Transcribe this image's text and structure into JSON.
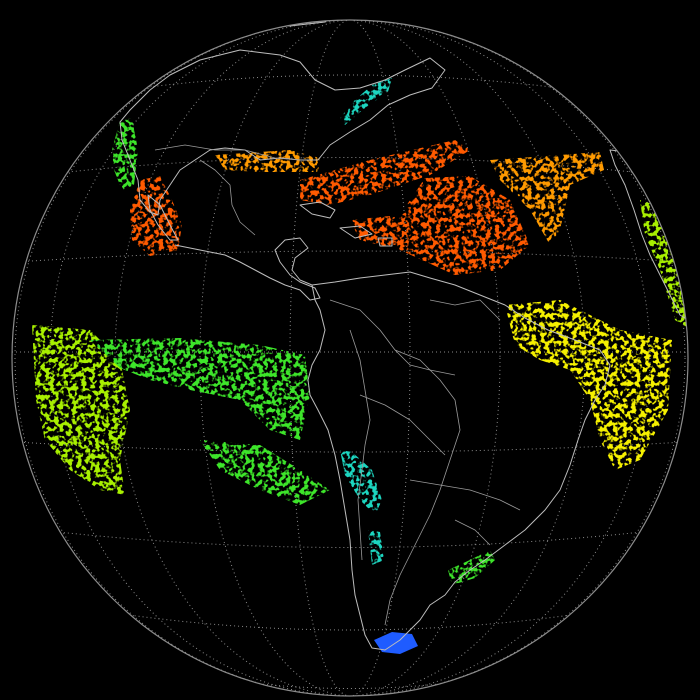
{
  "map": {
    "projection": "orthographic",
    "background_color": "#000000",
    "limb_color": "#8c8c8c",
    "coastline_color": "#bdbdbd",
    "graticule_color": "#8a8a8a",
    "legend": "none",
    "color_palette": {
      "blue": "#1f5cff",
      "cyan": "#1fd6c0",
      "green": "#3ee52a",
      "lime": "#a8f000",
      "yellow": "#f5f000",
      "orange": "#ff9a00",
      "red_orange": "#ff5a00"
    },
    "regions": [
      {
        "id": "baja-california",
        "color": "red_orange"
      },
      {
        "id": "pacific-coast-north",
        "color": "green"
      },
      {
        "id": "gulf-of-mexico-band",
        "color": "orange"
      },
      {
        "id": "caribbean-atlantic-band",
        "color": "red_orange"
      },
      {
        "id": "north-atlantic-band",
        "color": "orange"
      },
      {
        "id": "newfoundland-streak",
        "color": "cyan"
      },
      {
        "id": "eastern-brazil",
        "color": "yellow"
      },
      {
        "id": "western-africa-edge",
        "color": "lime"
      },
      {
        "id": "eastern-pacific-south",
        "color": "green"
      },
      {
        "id": "far-eastern-pacific",
        "color": "lime"
      },
      {
        "id": "chile-coast",
        "color": "cyan"
      },
      {
        "id": "rio-de-la-plata",
        "color": "green"
      },
      {
        "id": "tierra-del-fuego",
        "color": "blue"
      }
    ]
  }
}
